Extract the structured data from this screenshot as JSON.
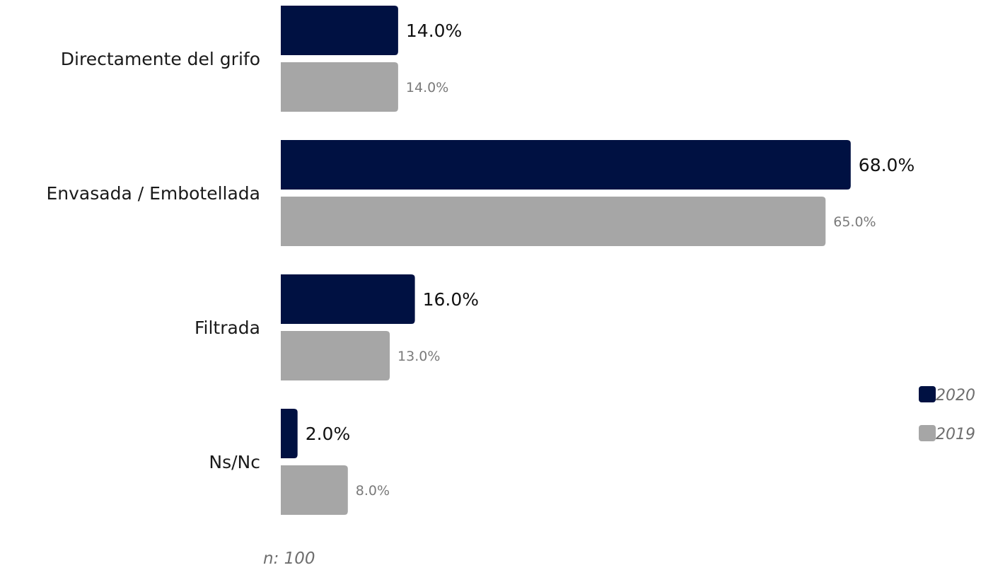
{
  "chart_data": {
    "type": "bar",
    "orientation": "horizontal",
    "categories": [
      "Directamente del grifo",
      "Envasada / Embotellada",
      "Filtrada",
      "Ns/Nc"
    ],
    "series": [
      {
        "name": "2020",
        "color": "#001142",
        "values": [
          14.0,
          68.0,
          16.0,
          2.0
        ],
        "labels": [
          "14.0%",
          "68.0%",
          "16.0%",
          "2.0%"
        ]
      },
      {
        "name": "2019",
        "color": "#a6a6a6",
        "values": [
          14.0,
          65.0,
          13.0,
          8.0
        ],
        "labels": [
          "14.0%",
          "65.0%",
          "13.0%",
          "8.0%"
        ]
      }
    ],
    "xlim": [
      0,
      100
    ],
    "grid": false,
    "legend_position": "right"
  },
  "note": "n: 100"
}
